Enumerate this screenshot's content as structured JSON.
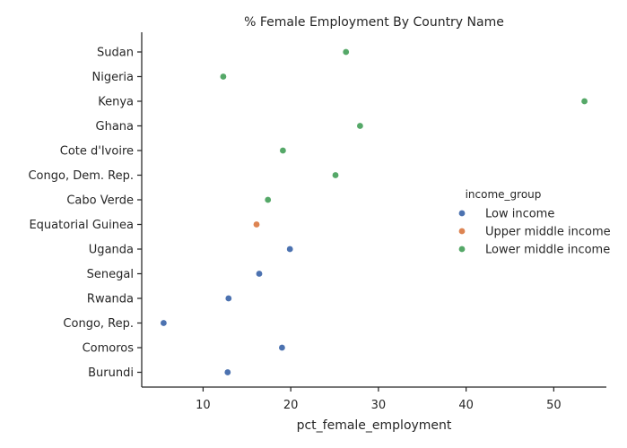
{
  "chart_data": {
    "type": "scatter",
    "title": "% Female Employment By Country Name",
    "xlabel": "pct_female_employment",
    "ylabel": "",
    "xlim": [
      3.0,
      56.0
    ],
    "xticks": [
      "10",
      "20",
      "30",
      "40",
      "50"
    ],
    "categories": [
      "Sudan",
      "Nigeria",
      "Kenya",
      "Ghana",
      "Cote d'Ivoire",
      "Congo, Dem. Rep.",
      "Cabo Verde",
      "Equatorial Guinea",
      "Uganda",
      "Senegal",
      "Rwanda",
      "Congo, Rep.",
      "Comoros",
      "Burundi"
    ],
    "legend": {
      "title": "income_group",
      "position": "right"
    },
    "grid": false,
    "series": [
      {
        "name": "Low income",
        "color": "#4c72b0",
        "points": [
          {
            "category": "Uganda",
            "x": 19.9
          },
          {
            "category": "Senegal",
            "x": 16.4
          },
          {
            "category": "Rwanda",
            "x": 12.9
          },
          {
            "category": "Congo, Rep.",
            "x": 5.5
          },
          {
            "category": "Comoros",
            "x": 19.0
          },
          {
            "category": "Burundi",
            "x": 12.8
          }
        ]
      },
      {
        "name": "Upper middle income",
        "color": "#dd8452",
        "points": [
          {
            "category": "Equatorial Guinea",
            "x": 16.1
          }
        ]
      },
      {
        "name": "Lower middle income",
        "color": "#55a868",
        "points": [
          {
            "category": "Sudan",
            "x": 26.3
          },
          {
            "category": "Nigeria",
            "x": 12.3
          },
          {
            "category": "Kenya",
            "x": 53.5
          },
          {
            "category": "Ghana",
            "x": 27.9
          },
          {
            "category": "Cote d'Ivoire",
            "x": 19.1
          },
          {
            "category": "Congo, Dem. Rep.",
            "x": 25.1
          },
          {
            "category": "Cabo Verde",
            "x": 17.4
          }
        ]
      }
    ]
  }
}
